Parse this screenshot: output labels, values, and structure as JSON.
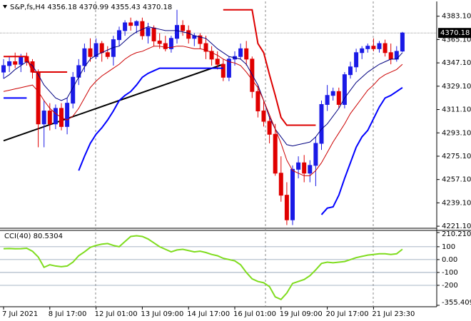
{
  "chart_data": {
    "type": "candlestick",
    "title": "S&P,fs,H4 4356.18 4370.99 4355.43 4370.18",
    "categories": [
      "7 Jul 2021",
      null,
      null,
      null,
      null,
      null,
      null,
      null,
      "8 Jul 17:00",
      null,
      null,
      null,
      null,
      null,
      null,
      null,
      "12 Jul 01:00",
      null,
      null,
      null,
      null,
      null,
      null,
      null,
      "13 Jul 09:00",
      null,
      null,
      null,
      null,
      null,
      null,
      null,
      "14 Jul 17:00",
      null,
      null,
      null,
      null,
      null,
      null,
      null,
      "16 Jul 01:00",
      null,
      null,
      null,
      null,
      null,
      null,
      null,
      "19 Jul 09:00",
      null,
      null,
      null,
      null,
      null,
      null,
      null,
      "20 Jul 17:00",
      null,
      null,
      null,
      null,
      null,
      null,
      null,
      "21 Jul 23:30",
      null,
      null,
      null,
      null,
      null
    ],
    "open": [
      4340,
      4345,
      4348,
      4346,
      4352,
      4348,
      4340,
      4300,
      4310,
      4300,
      4312,
      4298,
      4316,
      4336,
      4345,
      4358,
      4352,
      4362,
      4355,
      4352,
      4365,
      4372,
      4378,
      4376,
      4379,
      4368,
      4374,
      4364,
      4362,
      4358,
      4366,
      4376,
      4372,
      4366,
      4368,
      4362,
      4356,
      4350,
      4346,
      4336,
      4350,
      4352,
      4358,
      4350,
      4325,
      4310,
      4302,
      4292,
      4262,
      4245,
      4226,
      4265,
      4270,
      4262,
      4268,
      4285,
      4315,
      4322,
      4325,
      4315,
      4338,
      4344,
      4355,
      4358,
      4360,
      4358,
      4362,
      4355,
      4350,
      4356.18
    ],
    "high": [
      4350,
      4352,
      4355,
      4354,
      4355,
      4350,
      4342,
      4318,
      4316,
      4315,
      4316,
      4320,
      4340,
      4350,
      4362,
      4366,
      4366,
      4364,
      4360,
      4368,
      4375,
      4380,
      4382,
      4380,
      4382,
      4378,
      4376,
      4370,
      4368,
      4368,
      4388,
      4380,
      4376,
      4370,
      4370,
      4368,
      4360,
      4356,
      4350,
      4352,
      4356,
      4362,
      4364,
      4352,
      4330,
      4318,
      4306,
      4300,
      4275,
      4255,
      4268,
      4275,
      4276,
      4272,
      4290,
      4318,
      4330,
      4328,
      4328,
      4340,
      4348,
      4358,
      4360,
      4362,
      4366,
      4364,
      4365,
      4362,
      4360,
      4370.99
    ],
    "low": [
      4335,
      4340,
      4343,
      4340,
      4345,
      4335,
      4282,
      4282,
      4295,
      4296,
      4295,
      4292,
      4312,
      4330,
      4340,
      4348,
      4350,
      4348,
      4350,
      4345,
      4360,
      4368,
      4372,
      4370,
      4365,
      4362,
      4360,
      4358,
      4356,
      4355,
      4362,
      4368,
      4362,
      4360,
      4358,
      4350,
      4345,
      4342,
      4333,
      4333,
      4345,
      4350,
      4345,
      4320,
      4305,
      4298,
      4285,
      4260,
      4240,
      4222,
      4222,
      4258,
      4255,
      4255,
      4252,
      4280,
      4310,
      4318,
      4312,
      4312,
      4335,
      4340,
      4350,
      4355,
      4356,
      4355,
      4352,
      4346,
      4348,
      4355.43
    ],
    "close": [
      4345,
      4348,
      4346,
      4352,
      4348,
      4340,
      4300,
      4310,
      4300,
      4312,
      4298,
      4316,
      4336,
      4345,
      4358,
      4352,
      4362,
      4355,
      4352,
      4365,
      4372,
      4378,
      4376,
      4379,
      4368,
      4374,
      4364,
      4362,
      4358,
      4366,
      4376,
      4372,
      4366,
      4368,
      4362,
      4356,
      4350,
      4346,
      4336,
      4350,
      4352,
      4358,
      4350,
      4325,
      4310,
      4302,
      4292,
      4262,
      4245,
      4226,
      4265,
      4270,
      4262,
      4268,
      4285,
      4315,
      4322,
      4325,
      4315,
      4338,
      4344,
      4355,
      4358,
      4360,
      4358,
      4362,
      4355,
      4350,
      4356,
      4370.18
    ],
    "up_color": "#1a1ae6",
    "down_color": "#e00000",
    "ylim": [
      4219.5,
      4394.5
    ],
    "yticks": [
      {
        "value": 4383.1,
        "label": "4383.10"
      },
      {
        "value": 4365.1,
        "label": "4365.10"
      },
      {
        "value": 4347.1,
        "label": "4347.10"
      },
      {
        "value": 4329.1,
        "label": "4329.10"
      },
      {
        "value": 4311.1,
        "label": "4311.10"
      },
      {
        "value": 4293.1,
        "label": "4293.10"
      },
      {
        "value": 4275.1,
        "label": "4275.10"
      },
      {
        "value": 4257.1,
        "label": "4257.10"
      },
      {
        "value": 4239.1,
        "label": "4239.10"
      },
      {
        "value": 4221.1,
        "label": "4221.10"
      }
    ],
    "last_price": 4370.18,
    "lines": [
      {
        "color": "#000080",
        "width": 1,
        "values": [
          4335,
          4338,
          4342,
          4345,
          4348,
          4345,
          4338,
          4330,
          4325,
          4320,
          4318,
          4320,
          4328,
          4336,
          4344,
          4350,
          4353,
          4355,
          4357,
          4359,
          4360,
          4364,
          4368,
          4371,
          4373,
          4375,
          4374,
          4373,
          4372,
          4372,
          4372,
          4371,
          4370,
          4368,
          4367,
          4366,
          4362,
          4358,
          4355,
          4352,
          4351,
          4350,
          4346,
          4338,
          4330,
          4318,
          4305,
          4296,
          4290,
          4284,
          4283,
          4284,
          4285,
          4286,
          4290,
          4296,
          4300,
          4306,
          4312,
          4320,
          4326,
          4332,
          4336,
          4340,
          4343,
          4346,
          4348,
          4350,
          4350,
          4355
        ]
      },
      {
        "color": "#cc0000",
        "width": 1,
        "values": [
          4325,
          4326,
          4327,
          4328,
          4329,
          4330,
          4325,
          4318,
          4312,
          4308,
          4305,
          4303,
          4306,
          4312,
          4320,
          4328,
          4333,
          4337,
          4340,
          4343,
          4346,
          4350,
          4353,
          4355,
          4356,
          4358,
          4360,
          4360,
          4359,
          4359,
          4360,
          4360,
          4359,
          4358,
          4358,
          4357,
          4355,
          4353,
          4350,
          4348,
          4347,
          4345,
          4340,
          4334,
          4328,
          4318,
          4307,
          4296,
          4285,
          4272,
          4264,
          4262,
          4260,
          4260,
          4264,
          4270,
          4278,
          4286,
          4293,
          4300,
          4308,
          4314,
          4320,
          4326,
          4330,
          4335,
          4338,
          4340,
          4342,
          4346
        ]
      },
      {
        "color": "#0000ff",
        "width": 2,
        "values": [
          4320,
          4320,
          4320,
          4320,
          4320,
          null,
          null,
          null,
          null,
          null,
          null,
          null,
          null,
          4264,
          4275,
          4285,
          4292,
          4297,
          4303,
          4310,
          4318,
          4322,
          4325,
          4330,
          4336,
          4339,
          4341,
          4343,
          4343,
          4343,
          4343,
          4343,
          4343,
          4343,
          4343,
          4343,
          4343,
          4343,
          4343,
          null,
          null,
          null,
          null,
          null,
          null,
          null,
          null,
          null,
          null,
          null,
          null,
          null,
          null,
          null,
          null,
          4230,
          4235,
          4236,
          4245,
          4258,
          4270,
          4282,
          4290,
          4295,
          4304,
          4313,
          4320,
          4322,
          4325,
          4328
        ]
      },
      {
        "color": "#dd0000",
        "width": 2,
        "values": [
          4352,
          4352,
          4352,
          4352,
          4352,
          4340,
          4340,
          4340,
          4340,
          4340,
          4340,
          4340,
          null,
          null,
          null,
          null,
          null,
          null,
          null,
          null,
          null,
          null,
          null,
          null,
          null,
          null,
          null,
          null,
          null,
          null,
          null,
          null,
          null,
          null,
          null,
          null,
          null,
          null,
          4388,
          4388,
          4388,
          4388,
          4388,
          4388,
          4362,
          4355,
          4338,
          4322,
          4305,
          4299,
          4299,
          4299,
          4299,
          4299,
          4299,
          null,
          null,
          null,
          null,
          null,
          null,
          null,
          null,
          null,
          null,
          null,
          null,
          null,
          null,
          null
        ]
      }
    ],
    "trendline": {
      "color": "#000000",
      "x": [
        0,
        38
      ],
      "values": [
        4287,
        4346
      ]
    },
    "cci": {
      "title": "CCI(40) 80.5304",
      "color": "#7fdc1e",
      "ylim": [
        -355.409,
        210.2109
      ],
      "yticks": [
        210.2109,
        100,
        {
          "value": 0,
          "label": "0.00"
        },
        -100,
        -200,
        -355.409
      ],
      "values": [
        85,
        86,
        84,
        85,
        88,
        65,
        20,
        -60,
        -40,
        -50,
        -55,
        -50,
        -20,
        30,
        60,
        95,
        110,
        120,
        125,
        110,
        100,
        140,
        180,
        185,
        180,
        160,
        130,
        100,
        80,
        60,
        75,
        80,
        70,
        60,
        65,
        55,
        40,
        30,
        10,
        0,
        -10,
        -40,
        -100,
        -150,
        -170,
        -180,
        -210,
        -290,
        -310,
        -260,
        -185,
        -170,
        -155,
        -125,
        -80,
        -30,
        -20,
        -25,
        -20,
        -15,
        0,
        15,
        25,
        35,
        40,
        45,
        45,
        40,
        45,
        80.5304
      ]
    }
  }
}
